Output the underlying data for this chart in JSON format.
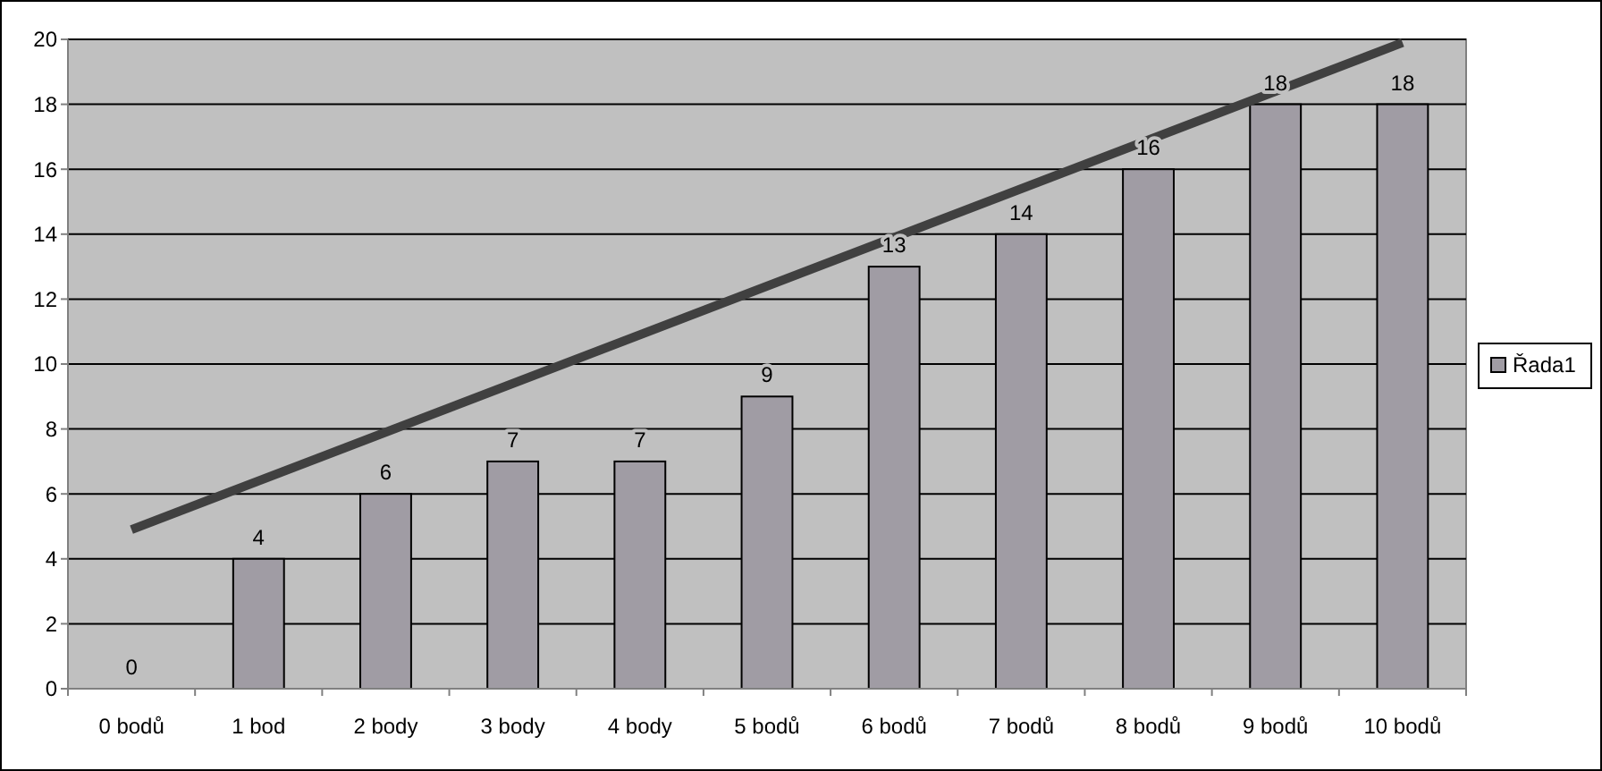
{
  "chart_data": {
    "type": "bar",
    "categories": [
      "0 bodů",
      "1 bod",
      "2 body",
      "3 body",
      "4 body",
      "5 bodů",
      "6 bodů",
      "7 bodů",
      "8 bodů",
      "9 bodů",
      "10 bodů"
    ],
    "series": [
      {
        "name": "Řada1",
        "color": "#a09ca4",
        "values": [
          0,
          4,
          6,
          7,
          7,
          9,
          13,
          14,
          16,
          18,
          18
        ],
        "value_labels": [
          "0",
          "4",
          "6",
          "7",
          "7",
          "9",
          "13",
          "14",
          "16",
          "18",
          "18"
        ]
      },
      {
        "type": "line",
        "x": [
          "0 bodů",
          "10 bodů"
        ],
        "values": [
          4.9,
          19.9
        ],
        "color": "#404040"
      }
    ],
    "ylim": [
      0,
      20
    ],
    "yticks": [
      0,
      2,
      4,
      6,
      8,
      10,
      12,
      14,
      16,
      18,
      20
    ],
    "grid": "y",
    "legend": "right"
  }
}
